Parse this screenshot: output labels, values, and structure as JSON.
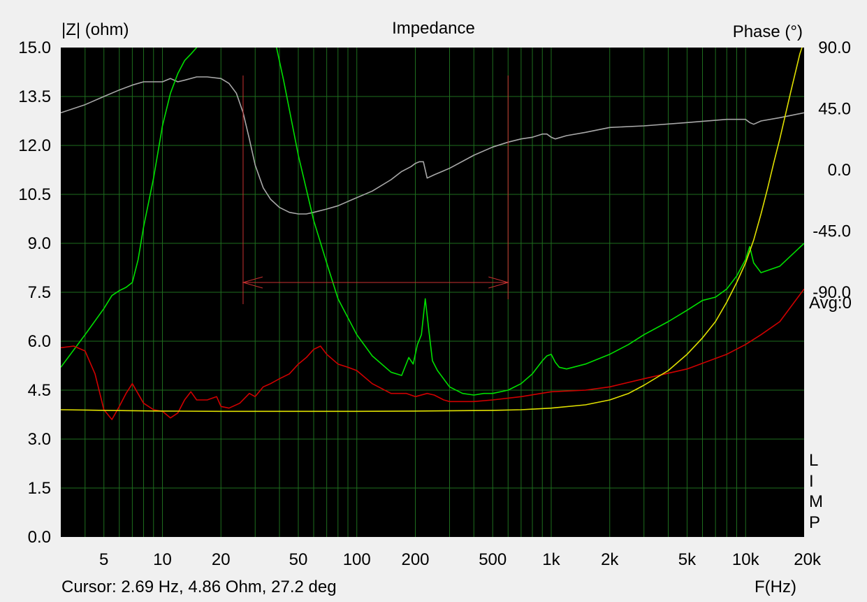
{
  "title": "Impedance",
  "y_left_title": "|Z| (ohm)",
  "y_right_title": "Phase (°)",
  "x_title": "F(Hz)",
  "cursor_text": "Cursor: 2.69 Hz, 4.86 Ohm, 27.2 deg",
  "avg_text": "Avg:0",
  "side_letters": [
    "L",
    "I",
    "M",
    "P"
  ],
  "colors": {
    "background": "#000000",
    "grid": "#1e6e1e",
    "green": "#00e000",
    "red": "#d00000",
    "yellow": "#e0e000",
    "gray": "#a8a8a8",
    "marker": "#c83030"
  },
  "chart_data": {
    "type": "line",
    "title": "Impedance",
    "xlabel": "F(Hz)",
    "ylabel": "|Z| (ohm)",
    "y2label": "Phase (°)",
    "xscale": "log",
    "xlim": [
      3,
      20000
    ],
    "ylim": [
      0,
      15
    ],
    "y2lim": [
      -270,
      90
    ],
    "grid": true,
    "x_ticks": [
      {
        "v": 5,
        "label": "5"
      },
      {
        "v": 10,
        "label": "10"
      },
      {
        "v": 20,
        "label": "20"
      },
      {
        "v": 50,
        "label": "50"
      },
      {
        "v": 100,
        "label": "100"
      },
      {
        "v": 200,
        "label": "200"
      },
      {
        "v": 500,
        "label": "500"
      },
      {
        "v": 1000,
        "label": "1k"
      },
      {
        "v": 2000,
        "label": "2k"
      },
      {
        "v": 5000,
        "label": "5k"
      },
      {
        "v": 10000,
        "label": "10k"
      },
      {
        "v": 20000,
        "label": "20k"
      }
    ],
    "y_ticks": [
      {
        "v": 0,
        "label": "0.0"
      },
      {
        "v": 1.5,
        "label": "1.5"
      },
      {
        "v": 3,
        "label": "3.0"
      },
      {
        "v": 4.5,
        "label": "4.5"
      },
      {
        "v": 6,
        "label": "6.0"
      },
      {
        "v": 7.5,
        "label": "7.5"
      },
      {
        "v": 9,
        "label": "9.0"
      },
      {
        "v": 10.5,
        "label": "10.5"
      },
      {
        "v": 12,
        "label": "12.0"
      },
      {
        "v": 13.5,
        "label": "13.5"
      },
      {
        "v": 15,
        "label": "15.0"
      }
    ],
    "y2_ticks": [
      {
        "v": 90,
        "label": "90.0"
      },
      {
        "v": 45,
        "label": "45.0"
      },
      {
        "v": 0,
        "label": "0.0"
      },
      {
        "v": -45,
        "label": "-45.0"
      },
      {
        "v": -90,
        "label": "-90.0"
      }
    ],
    "series": [
      {
        "id": "gray",
        "axis": "y",
        "color": "#a8a8a8",
        "x": [
          3,
          4,
          5,
          6,
          7,
          8,
          9,
          10,
          11,
          12,
          13,
          15,
          17,
          20,
          22,
          24,
          26,
          28,
          30,
          33,
          36,
          40,
          45,
          50,
          55,
          60,
          70,
          80,
          100,
          120,
          150,
          170,
          190,
          200,
          210,
          220,
          230,
          250,
          300,
          400,
          500,
          600,
          700,
          800,
          900,
          950,
          1000,
          1050,
          1200,
          1500,
          2000,
          3000,
          5000,
          8000,
          10000,
          10500,
          11000,
          12000,
          15000,
          20000
        ],
        "y": [
          13.0,
          13.25,
          13.5,
          13.7,
          13.85,
          13.95,
          13.95,
          13.95,
          14.05,
          13.95,
          14.0,
          14.1,
          14.1,
          14.05,
          13.9,
          13.6,
          13.0,
          12.2,
          11.4,
          10.7,
          10.35,
          10.1,
          9.95,
          9.9,
          9.9,
          9.95,
          10.05,
          10.15,
          10.4,
          10.6,
          10.95,
          11.2,
          11.35,
          11.45,
          11.5,
          11.5,
          11.0,
          11.1,
          11.3,
          11.7,
          11.95,
          12.1,
          12.2,
          12.25,
          12.35,
          12.35,
          12.25,
          12.2,
          12.3,
          12.4,
          12.55,
          12.6,
          12.7,
          12.8,
          12.8,
          12.7,
          12.65,
          12.75,
          12.85,
          13.0
        ]
      },
      {
        "id": "green",
        "axis": "y",
        "color": "#00e000",
        "x": [
          3,
          4,
          5,
          5.5,
          6,
          6.5,
          7,
          7.5,
          8,
          9,
          10,
          11,
          12,
          13,
          14,
          15,
          16,
          17,
          38,
          42,
          50,
          60,
          70,
          80,
          100,
          120,
          150,
          170,
          185,
          195,
          205,
          215,
          225,
          235,
          245,
          260,
          300,
          350,
          400,
          450,
          500,
          600,
          700,
          800,
          900,
          950,
          1000,
          1050,
          1100,
          1200,
          1500,
          2000,
          2500,
          3000,
          4000,
          5000,
          6000,
          7000,
          8000,
          9000,
          10000,
          10500,
          11000,
          12000,
          15000,
          20000
        ],
        "y": [
          5.2,
          6.2,
          7.0,
          7.4,
          7.55,
          7.65,
          7.8,
          8.5,
          9.5,
          11.0,
          12.6,
          13.6,
          14.2,
          14.6,
          14.8,
          15.0,
          15.2,
          15.4,
          15.2,
          14.0,
          11.7,
          9.7,
          8.4,
          7.3,
          6.2,
          5.55,
          5.05,
          4.95,
          5.5,
          5.3,
          5.9,
          6.2,
          7.3,
          6.3,
          5.4,
          5.1,
          4.6,
          4.4,
          4.35,
          4.4,
          4.4,
          4.5,
          4.7,
          5.0,
          5.4,
          5.55,
          5.6,
          5.35,
          5.2,
          5.15,
          5.3,
          5.6,
          5.9,
          6.2,
          6.6,
          6.95,
          7.25,
          7.35,
          7.6,
          8.0,
          8.5,
          8.9,
          8.4,
          8.1,
          8.3,
          9.0
        ]
      },
      {
        "id": "red",
        "axis": "y",
        "color": "#d00000",
        "x": [
          3,
          3.5,
          4,
          4.5,
          5,
          5.5,
          6,
          6.5,
          7,
          8,
          9,
          10,
          11,
          12,
          13,
          14,
          15,
          17,
          19,
          20,
          22,
          25,
          28,
          30,
          33,
          36,
          40,
          45,
          50,
          55,
          60,
          65,
          70,
          80,
          90,
          100,
          120,
          150,
          180,
          200,
          230,
          250,
          280,
          300,
          400,
          500,
          700,
          1000,
          1500,
          2000,
          3000,
          5000,
          8000,
          10000,
          12000,
          15000,
          20000
        ],
        "y": [
          5.8,
          5.85,
          5.7,
          5.0,
          3.9,
          3.6,
          4.0,
          4.4,
          4.7,
          4.1,
          3.9,
          3.85,
          3.65,
          3.8,
          4.2,
          4.45,
          4.2,
          4.2,
          4.3,
          4.0,
          3.95,
          4.1,
          4.4,
          4.3,
          4.6,
          4.7,
          4.85,
          5.0,
          5.3,
          5.5,
          5.75,
          5.85,
          5.6,
          5.3,
          5.2,
          5.1,
          4.7,
          4.4,
          4.4,
          4.3,
          4.4,
          4.35,
          4.2,
          4.15,
          4.15,
          4.2,
          4.3,
          4.45,
          4.5,
          4.6,
          4.85,
          5.15,
          5.6,
          5.9,
          6.2,
          6.6,
          7.6
        ]
      },
      {
        "id": "yellow",
        "axis": "y",
        "color": "#e0e000",
        "x": [
          3,
          5,
          10,
          20,
          50,
          100,
          200,
          500,
          700,
          1000,
          1500,
          2000,
          2500,
          3000,
          4000,
          5000,
          6000,
          7000,
          8000,
          9000,
          10000,
          11000,
          12000,
          13000,
          14000,
          15000,
          17000,
          19000,
          20000
        ],
        "y": [
          3.9,
          3.88,
          3.86,
          3.85,
          3.85,
          3.85,
          3.86,
          3.88,
          3.9,
          3.95,
          4.05,
          4.2,
          4.4,
          4.65,
          5.1,
          5.6,
          6.1,
          6.6,
          7.2,
          7.8,
          8.4,
          9.1,
          9.9,
          10.7,
          11.5,
          12.2,
          13.6,
          14.8,
          15.2
        ]
      }
    ],
    "bandwidth_marker": {
      "x_start": 26,
      "x_end": 600,
      "y": 7.8
    }
  }
}
